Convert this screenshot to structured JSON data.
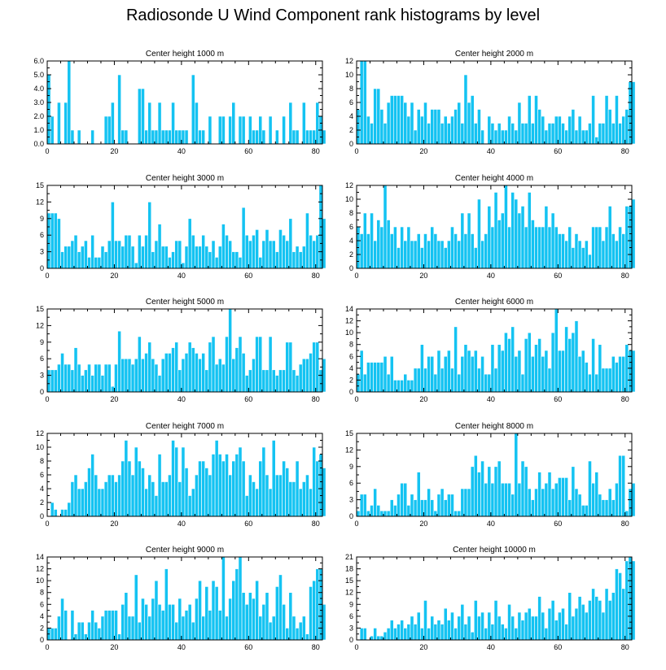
{
  "title": "Radiosonde U Wind Component rank histograms by level",
  "colors": {
    "bar": "#14c3f2",
    "bar_edge": "#ffffff",
    "axis": "#000000"
  },
  "chart_data": [
    {
      "type": "bar",
      "title": "Center height 1000 m",
      "xlim": [
        0,
        82
      ],
      "ylim": [
        0,
        6
      ],
      "xticks": [
        "0",
        "20",
        "40",
        "60",
        "80"
      ],
      "yticks": [
        "0.0",
        "1.0",
        "2.0",
        "3.0",
        "4.0",
        "5.0",
        "6.0"
      ],
      "ytick_values": [
        0,
        1,
        2,
        3,
        4,
        5,
        6
      ],
      "values": [
        5,
        2,
        0,
        3,
        0,
        3,
        6,
        1,
        0,
        1,
        0,
        0,
        0,
        1,
        0,
        0,
        0,
        2,
        2,
        3,
        0,
        5,
        1,
        1,
        0,
        0,
        0,
        4,
        4,
        1,
        3,
        1,
        1,
        3,
        1,
        1,
        1,
        3,
        1,
        1,
        1,
        1,
        0,
        5,
        3,
        1,
        1,
        0,
        2,
        0,
        0,
        2,
        2,
        0,
        2,
        3,
        0,
        2,
        2,
        0,
        2,
        1,
        1,
        2,
        1,
        0,
        2,
        0,
        1,
        0,
        2,
        0,
        3,
        1,
        1,
        0,
        3,
        1,
        1,
        1,
        3,
        2,
        1
      ]
    },
    {
      "type": "bar",
      "title": "Center height 2000 m",
      "xlim": [
        0,
        82
      ],
      "ylim": [
        0,
        12
      ],
      "xticks": [
        "0",
        "20",
        "40",
        "60",
        "80"
      ],
      "yticks": [
        "0",
        "2",
        "4",
        "6",
        "8",
        "10",
        "12"
      ],
      "ytick_values": [
        0,
        2,
        4,
        6,
        8,
        10,
        12
      ],
      "values": [
        5,
        12,
        12,
        4,
        3,
        8,
        8,
        5,
        3,
        6,
        7,
        7,
        7,
        7,
        6,
        4,
        6,
        2,
        5,
        4,
        6,
        3,
        5,
        5,
        5,
        3,
        4,
        3,
        4,
        5,
        6,
        3,
        10,
        6,
        7,
        3,
        5,
        2,
        0,
        4,
        3,
        2,
        3,
        2,
        2,
        4,
        3,
        2,
        6,
        3,
        3,
        7,
        3,
        7,
        5,
        4,
        2,
        3,
        3,
        4,
        4,
        3,
        2,
        4,
        5,
        2,
        4,
        2,
        2,
        3,
        7,
        1,
        3,
        3,
        7,
        5,
        3,
        7,
        3,
        4,
        5,
        9,
        9
      ]
    },
    {
      "type": "bar",
      "title": "Center height 3000 m",
      "xlim": [
        0,
        82
      ],
      "ylim": [
        0,
        15
      ],
      "xticks": [
        "0",
        "20",
        "40",
        "60",
        "80"
      ],
      "yticks": [
        "0",
        "3",
        "6",
        "9",
        "12",
        "15"
      ],
      "ytick_values": [
        0,
        3,
        6,
        9,
        12,
        15
      ],
      "values": [
        10,
        10,
        10,
        9,
        3,
        4,
        4,
        5,
        6,
        3,
        4,
        5,
        2,
        6,
        2,
        2,
        4,
        3,
        5,
        12,
        5,
        5,
        4,
        6,
        6,
        4,
        1,
        6,
        4,
        6,
        12,
        3,
        5,
        8,
        4,
        4,
        2,
        3,
        5,
        5,
        1,
        4,
        9,
        6,
        4,
        4,
        6,
        4,
        3,
        5,
        2,
        4,
        8,
        6,
        5,
        3,
        3,
        2,
        11,
        6,
        5,
        6,
        7,
        2,
        5,
        7,
        5,
        5,
        3,
        7,
        6,
        5,
        9,
        3,
        4,
        3,
        4,
        10,
        6,
        5,
        6,
        15,
        9
      ]
    },
    {
      "type": "bar",
      "title": "Center height 4000 m",
      "xlim": [
        0,
        82
      ],
      "ylim": [
        0,
        12
      ],
      "xticks": [
        "0",
        "20",
        "40",
        "60",
        "80"
      ],
      "yticks": [
        "0",
        "2",
        "4",
        "6",
        "8",
        "10",
        "12"
      ],
      "ytick_values": [
        0,
        2,
        4,
        6,
        8,
        10,
        12
      ],
      "values": [
        6,
        5,
        8,
        5,
        8,
        4,
        7,
        6,
        12,
        7,
        5,
        6,
        3,
        6,
        4,
        6,
        4,
        4,
        5,
        3,
        5,
        4,
        6,
        5,
        4,
        4,
        3,
        4,
        6,
        5,
        4,
        8,
        5,
        8,
        5,
        3,
        10,
        4,
        5,
        9,
        6,
        11,
        7,
        8,
        12,
        6,
        11,
        10,
        8,
        9,
        6,
        11,
        7,
        6,
        6,
        6,
        9,
        6,
        8,
        6,
        5,
        5,
        4,
        6,
        3,
        5,
        4,
        3,
        4,
        2,
        6,
        6,
        6,
        4,
        6,
        9,
        5,
        4,
        6,
        5,
        9,
        9,
        10
      ]
    },
    {
      "type": "bar",
      "title": "Center height 5000 m",
      "xlim": [
        0,
        82
      ],
      "ylim": [
        0,
        15
      ],
      "xticks": [
        "0",
        "20",
        "40",
        "60",
        "80"
      ],
      "yticks": [
        "0",
        "3",
        "6",
        "9",
        "12",
        "15"
      ],
      "ytick_values": [
        0,
        3,
        6,
        9,
        12,
        15
      ],
      "values": [
        4,
        4,
        4,
        5,
        7,
        5,
        5,
        4,
        8,
        5,
        3,
        4,
        5,
        3,
        5,
        5,
        3,
        5,
        5,
        1,
        5,
        11,
        6,
        6,
        6,
        5,
        6,
        10,
        6,
        7,
        9,
        6,
        5,
        3,
        6,
        7,
        7,
        8,
        9,
        4,
        6,
        7,
        9,
        8,
        7,
        6,
        7,
        4,
        9,
        10,
        5,
        6,
        5,
        10,
        15,
        6,
        8,
        10,
        7,
        3,
        4,
        6,
        10,
        10,
        4,
        4,
        10,
        4,
        3,
        4,
        4,
        9,
        9,
        4,
        3,
        5,
        6,
        6,
        7,
        9,
        9,
        4,
        6
      ]
    },
    {
      "type": "bar",
      "title": "Center height 6000 m",
      "xlim": [
        0,
        82
      ],
      "ylim": [
        0,
        14
      ],
      "xticks": [
        "0",
        "20",
        "40",
        "60",
        "80"
      ],
      "yticks": [
        "0",
        "2",
        "4",
        "6",
        "8",
        "10",
        "12",
        "14"
      ],
      "ytick_values": [
        0,
        2,
        4,
        6,
        8,
        10,
        12,
        14
      ],
      "values": [
        3,
        7,
        3,
        5,
        5,
        5,
        5,
        5,
        6,
        3,
        6,
        2,
        2,
        2,
        3,
        2,
        2,
        4,
        4,
        8,
        4,
        6,
        6,
        3,
        7,
        4,
        6,
        7,
        4,
        11,
        3,
        6,
        8,
        7,
        6,
        7,
        4,
        6,
        3,
        3,
        8,
        4,
        8,
        7,
        10,
        9,
        11,
        6,
        7,
        3,
        9,
        10,
        6,
        8,
        9,
        6,
        7,
        4,
        10,
        14,
        7,
        7,
        11,
        9,
        10,
        12,
        6,
        7,
        5,
        3,
        9,
        3,
        8,
        4,
        4,
        4,
        6,
        5,
        6,
        6,
        8,
        7,
        7
      ]
    },
    {
      "type": "bar",
      "title": "Center height 7000 m",
      "xlim": [
        0,
        82
      ],
      "ylim": [
        0,
        12
      ],
      "xticks": [
        "0",
        "20",
        "40",
        "60",
        "80"
      ],
      "yticks": [
        "0",
        "2",
        "4",
        "6",
        "8",
        "10",
        "12"
      ],
      "ytick_values": [
        0,
        2,
        4,
        6,
        8,
        10,
        12
      ],
      "values": [
        0,
        2,
        1,
        0,
        1,
        1,
        2,
        5,
        6,
        4,
        4,
        5,
        7,
        9,
        6,
        4,
        4,
        5,
        6,
        6,
        5,
        6,
        8,
        11,
        8,
        6,
        10,
        8,
        7,
        4,
        6,
        5,
        3,
        9,
        5,
        5,
        6,
        11,
        10,
        5,
        10,
        7,
        3,
        4,
        6,
        8,
        8,
        7,
        6,
        9,
        11,
        9,
        8,
        9,
        6,
        8,
        9,
        10,
        8,
        3,
        6,
        5,
        4,
        8,
        10,
        6,
        4,
        11,
        6,
        6,
        8,
        7,
        5,
        5,
        8,
        4,
        5,
        6,
        4,
        10,
        8,
        9,
        7
      ]
    },
    {
      "type": "bar",
      "title": "Center height 8000 m",
      "xlim": [
        0,
        82
      ],
      "ylim": [
        0,
        15
      ],
      "xticks": [
        "0",
        "20",
        "40",
        "60",
        "80"
      ],
      "yticks": [
        "0",
        "3",
        "6",
        "9",
        "12",
        "15"
      ],
      "ytick_values": [
        0,
        3,
        6,
        9,
        12,
        15
      ],
      "values": [
        1,
        4,
        4,
        1,
        2,
        5,
        2,
        1,
        1,
        1,
        3,
        2,
        4,
        6,
        6,
        2,
        4,
        3,
        8,
        3,
        3,
        5,
        3,
        1,
        4,
        5,
        3,
        4,
        4,
        1,
        1,
        5,
        5,
        5,
        9,
        11,
        8,
        10,
        6,
        9,
        6,
        9,
        10,
        6,
        6,
        6,
        4,
        15,
        6,
        10,
        9,
        5,
        3,
        5,
        8,
        5,
        6,
        8,
        5,
        6,
        7,
        7,
        7,
        3,
        9,
        5,
        4,
        2,
        2,
        10,
        6,
        8,
        4,
        3,
        3,
        5,
        3,
        6,
        11,
        11,
        1,
        5,
        6
      ]
    },
    {
      "type": "bar",
      "title": "Center height 9000 m",
      "xlim": [
        0,
        82
      ],
      "ylim": [
        0,
        14
      ],
      "xticks": [
        "0",
        "20",
        "40",
        "60",
        "80"
      ],
      "yticks": [
        "0",
        "2",
        "4",
        "6",
        "8",
        "10",
        "12",
        "14"
      ],
      "ytick_values": [
        0,
        2,
        4,
        6,
        8,
        10,
        12,
        14
      ],
      "values": [
        2,
        2,
        2,
        4,
        7,
        5,
        0,
        5,
        1,
        3,
        3,
        1,
        3,
        5,
        3,
        2,
        4,
        5,
        5,
        5,
        5,
        1,
        6,
        8,
        4,
        4,
        11,
        3,
        7,
        6,
        4,
        7,
        10,
        6,
        5,
        12,
        6,
        6,
        3,
        7,
        4,
        5,
        6,
        3,
        7,
        10,
        4,
        9,
        5,
        10,
        9,
        5,
        14,
        4,
        7,
        10,
        12,
        14,
        8,
        6,
        8,
        7,
        10,
        4,
        6,
        8,
        3,
        4,
        9,
        11,
        6,
        2,
        8,
        4,
        2,
        3,
        4,
        1,
        9,
        10,
        12,
        12,
        6
      ]
    },
    {
      "type": "bar",
      "title": "Center height 10000 m",
      "xlim": [
        0,
        82
      ],
      "ylim": [
        0,
        21
      ],
      "xticks": [
        "0",
        "20",
        "40",
        "60",
        "80"
      ],
      "yticks": [
        "0",
        "3",
        "6",
        "9",
        "12",
        "15",
        "18",
        "21"
      ],
      "ytick_values": [
        0,
        3,
        6,
        9,
        12,
        15,
        18,
        21
      ],
      "values": [
        0,
        3,
        3,
        0,
        1,
        3,
        1,
        1,
        2,
        3,
        5,
        3,
        4,
        5,
        3,
        4,
        6,
        4,
        7,
        3,
        10,
        3,
        6,
        4,
        5,
        4,
        8,
        5,
        7,
        3,
        6,
        9,
        4,
        6,
        2,
        10,
        6,
        7,
        3,
        7,
        4,
        10,
        6,
        4,
        3,
        9,
        6,
        3,
        7,
        5,
        7,
        8,
        6,
        6,
        11,
        7,
        3,
        8,
        10,
        5,
        7,
        8,
        4,
        12,
        6,
        8,
        11,
        9,
        7,
        10,
        13,
        11,
        10,
        7,
        13,
        10,
        12,
        18,
        17,
        13,
        20,
        21,
        20
      ]
    }
  ]
}
